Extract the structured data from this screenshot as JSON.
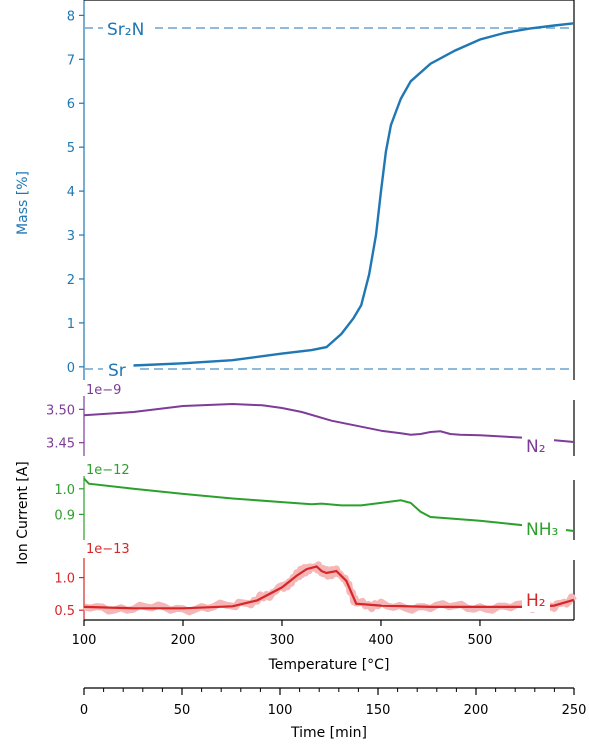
{
  "colors": {
    "mass": "#1f77b4",
    "n2": "#7d3c98",
    "nh3": "#2ca02c",
    "h2": "#d62728",
    "h2_noise": "#f4b6b6",
    "axes": "#000000"
  },
  "labels": {
    "mass_ylabel": "Mass [%]",
    "ion_ylabel": "Ion Current [A]",
    "temp_xlabel": "Temperature [°C]",
    "time_xlabel": "Time [min]",
    "ref_top": "Sr₂N",
    "ref_bottom": "Sr",
    "n2_label": "N₂",
    "nh3_label": "NH₃",
    "h2_label": "H₂",
    "n2_exp": "1e−9",
    "nh3_exp": "1e−12",
    "h2_exp": "1e−13"
  },
  "chart_data": [
    {
      "type": "line",
      "name": "mass",
      "ylabel": "Mass [%]",
      "xlim": [
        100,
        595
      ],
      "ylim": [
        -0.3,
        8.35
      ],
      "yticks": [
        0,
        1,
        2,
        3,
        4,
        5,
        6,
        7,
        8
      ],
      "reference_lines": [
        {
          "label": "Sr₂N",
          "y": 8
        },
        {
          "label": "Sr",
          "y": 0
        }
      ],
      "x": [
        150,
        200,
        250,
        300,
        330,
        345,
        360,
        372,
        380,
        388,
        395,
        400,
        405,
        410,
        415,
        420,
        430,
        450,
        475,
        500,
        525,
        550,
        575,
        595
      ],
      "y": [
        0.03,
        0.08,
        0.15,
        0.3,
        0.38,
        0.45,
        0.75,
        1.1,
        1.4,
        2.1,
        3.0,
        4.0,
        4.9,
        5.5,
        5.8,
        6.1,
        6.5,
        6.9,
        7.2,
        7.45,
        7.6,
        7.7,
        7.77,
        7.82
      ]
    },
    {
      "type": "line",
      "name": "N₂",
      "multiplier": "1e−9",
      "yticks": [
        3.45,
        3.5
      ],
      "ylim": [
        3.43,
        3.52
      ],
      "x": [
        100,
        150,
        200,
        250,
        280,
        300,
        320,
        350,
        380,
        400,
        410,
        420,
        430,
        440,
        450,
        460,
        470,
        480,
        500,
        550,
        595
      ],
      "y": [
        3.491,
        3.496,
        3.505,
        3.508,
        3.506,
        3.502,
        3.496,
        3.483,
        3.474,
        3.468,
        3.466,
        3.464,
        3.462,
        3.463,
        3.466,
        3.467,
        3.463,
        3.462,
        3.461,
        3.457,
        3.451
      ]
    },
    {
      "type": "line",
      "name": "NH₃",
      "multiplier": "1e−12",
      "yticks": [
        0.9,
        1.0
      ],
      "ylim": [
        0.8,
        1.05
      ],
      "x": [
        100,
        105,
        150,
        200,
        250,
        300,
        330,
        340,
        360,
        380,
        400,
        420,
        430,
        440,
        450,
        500,
        550,
        595
      ],
      "y": [
        1.04,
        1.02,
        1.0,
        0.98,
        0.962,
        0.948,
        0.94,
        0.942,
        0.935,
        0.935,
        0.945,
        0.955,
        0.945,
        0.91,
        0.89,
        0.875,
        0.855,
        0.835
      ]
    },
    {
      "type": "line",
      "name": "H₂",
      "multiplier": "1e−13",
      "yticks": [
        0.5,
        1.0
      ],
      "ylim": [
        0.35,
        1.3
      ],
      "x": [
        100,
        150,
        200,
        250,
        275,
        300,
        315,
        325,
        335,
        340,
        345,
        355,
        365,
        375,
        400,
        450,
        500,
        550,
        575,
        595
      ],
      "y": [
        0.55,
        0.53,
        0.53,
        0.56,
        0.65,
        0.85,
        1.03,
        1.13,
        1.17,
        1.1,
        1.07,
        1.1,
        0.95,
        0.6,
        0.57,
        0.55,
        0.55,
        0.55,
        0.57,
        0.66
      ]
    }
  ],
  "axes": {
    "temperature": {
      "label": "Temperature [°C]",
      "ticks": [
        100,
        200,
        300,
        400,
        500
      ],
      "range": [
        100,
        595
      ]
    },
    "time": {
      "label": "Time [min]",
      "ticks": [
        0,
        50,
        100,
        150,
        200,
        250
      ],
      "range": [
        0,
        250
      ]
    }
  }
}
